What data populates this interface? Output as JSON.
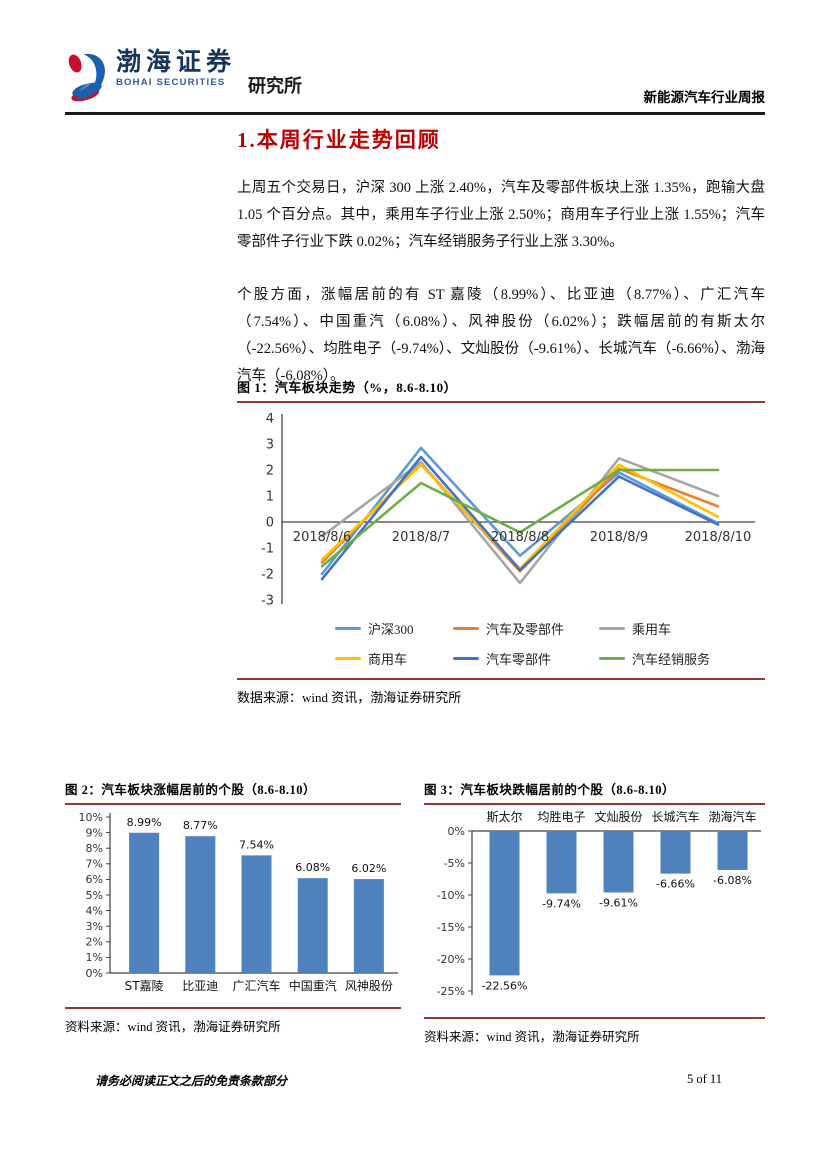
{
  "header": {
    "logo": {
      "cn": "渤海证券",
      "en": "BOHAI SECURITIES",
      "dept": "研究所"
    },
    "report_title": "新能源汽车行业周报"
  },
  "section": {
    "title": "1.本周行业走势回顾"
  },
  "paragraphs": [
    "上周五个交易日，沪深 300 上涨 2.40%，汽车及零部件板块上涨 1.35%，跑输大盘 1.05 个百分点。其中，乘用车子行业上涨 2.50%；商用车子行业上涨 1.55%；汽车零部件子行业下跌 0.02%；汽车经销服务子行业上涨 3.30%。",
    "个股方面，涨幅居前的有 ST 嘉陵（8.99%）、比亚迪（8.77%）、广汇汽车（7.54%）、中国重汽（6.08%）、风神股份（6.02%）；跌幅居前的有斯太尔（-22.56%）、均胜电子（-9.74%）、文灿股份（-9.61%）、长城汽车（-6.66%）、渤海汽车（-6.08%）。"
  ],
  "figure1": {
    "caption": "图 1：汽车板块走势（%，8.6-8.10）",
    "source": "数据来源：wind 资讯，渤海证券研究所"
  },
  "figure2": {
    "caption": "图 2：汽车板块涨幅居前的个股（8.6-8.10）",
    "source": "资料来源：wind 资讯，渤海证券研究所"
  },
  "figure3": {
    "caption": "图 3：汽车板块跌幅居前的个股（8.6-8.10）",
    "source": "资料来源：wind 资讯，渤海证券研究所"
  },
  "footer": {
    "disclaimer": "请务必阅读正文之后的免责条款部分",
    "page": "5 of 11"
  },
  "colors": {
    "heading_red": "#c00000",
    "figure_rule_red": "#943634",
    "bar_blue": "#4F81BD",
    "axis_gray": "#404040"
  },
  "chart_data": [
    {
      "id": "line-chart",
      "type": "line",
      "title": "汽车板块走势（%，8.6-8.10）",
      "x": [
        "2018/8/6",
        "2018/8/7",
        "2018/8/8",
        "2018/8/9",
        "2018/8/10"
      ],
      "ylim": [
        -3,
        4
      ],
      "yticks": [
        4,
        3,
        2,
        1,
        0,
        -1,
        -2,
        -3
      ],
      "grid": false,
      "legend_position": "bottom",
      "series": [
        {
          "name": "沪深300",
          "color": "#5B9BD5",
          "values": [
            -2.0,
            2.85,
            -1.3,
            1.9,
            -0.05
          ]
        },
        {
          "name": "汽车及零部件",
          "color": "#ED7D31",
          "values": [
            -1.55,
            2.25,
            -1.9,
            2.05,
            0.6
          ]
        },
        {
          "name": "乘用车",
          "color": "#A6A6A6",
          "values": [
            -0.55,
            2.3,
            -2.35,
            2.45,
            1.0
          ]
        },
        {
          "name": "商用车",
          "color": "#FFC000",
          "values": [
            -1.45,
            2.2,
            -1.8,
            2.2,
            0.2
          ]
        },
        {
          "name": "汽车零部件",
          "color": "#4472C4",
          "values": [
            -2.2,
            2.5,
            -1.85,
            1.75,
            -0.1
          ]
        },
        {
          "name": "汽车经销服务",
          "color": "#70AD47",
          "values": [
            -1.7,
            1.5,
            -0.4,
            2.0,
            2.0
          ]
        }
      ]
    },
    {
      "id": "gainers-bar",
      "type": "bar",
      "title": "汽车板块涨幅居前的个股（8.6-8.10）",
      "categories": [
        "ST嘉陵",
        "比亚迪",
        "广汇汽车",
        "中国重汽",
        "风神股份"
      ],
      "values": [
        8.99,
        8.77,
        7.54,
        6.08,
        6.02
      ],
      "labels": [
        "8.99%",
        "8.77%",
        "7.54%",
        "6.08%",
        "6.02%"
      ],
      "ylim": [
        0,
        10
      ],
      "yticks": [
        0,
        1,
        2,
        3,
        4,
        5,
        6,
        7,
        8,
        9,
        10
      ],
      "bar_color": "#4F81BD"
    },
    {
      "id": "losers-bar",
      "type": "bar",
      "title": "汽车板块跌幅居前的个股（8.6-8.10）",
      "categories": [
        "斯太尔",
        "均胜电子",
        "文灿股份",
        "长城汽车",
        "渤海汽车"
      ],
      "values": [
        -22.56,
        -9.74,
        -9.61,
        -6.66,
        -6.08
      ],
      "labels": [
        "-22.56%",
        "-9.74%",
        "-9.61%",
        "-6.66%",
        "-6.08%"
      ],
      "ylim": [
        -25,
        0
      ],
      "yticks": [
        0,
        -5,
        -10,
        -15,
        -20,
        -25
      ],
      "bar_color": "#4F81BD"
    }
  ]
}
